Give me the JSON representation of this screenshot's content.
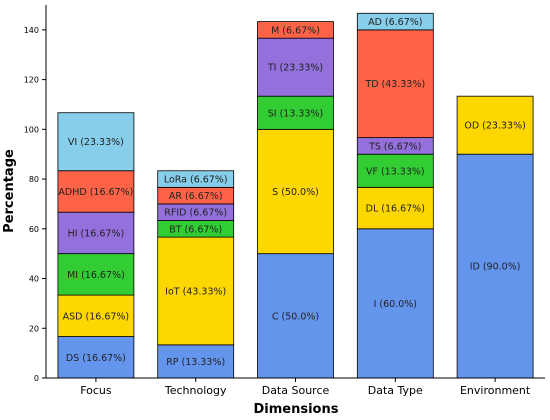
{
  "colors": {
    "blue": "#6495ED",
    "gold": "#FFD700",
    "green": "#32CD32",
    "purple": "#9370DB",
    "red": "#FF6347",
    "sky": "#87CEEB"
  },
  "chart_data": {
    "type": "bar",
    "stacked": true,
    "xlabel": "Dimensions",
    "ylabel": "Percentage",
    "ylim": [
      0,
      150
    ],
    "yticks": [
      0,
      20,
      40,
      60,
      80,
      100,
      120,
      140
    ],
    "grid": false,
    "categories": [
      "Focus",
      "Technology",
      "Data Source",
      "Data Type",
      "Environment"
    ],
    "stacks": [
      {
        "category": "Focus",
        "segments": [
          {
            "label": "DS (16.67%)",
            "value": 16.67,
            "color": "blue"
          },
          {
            "label": "ASD (16.67%)",
            "value": 16.67,
            "color": "gold"
          },
          {
            "label": "MI (16.67%)",
            "value": 16.67,
            "color": "green"
          },
          {
            "label": "HI (16.67%)",
            "value": 16.67,
            "color": "purple"
          },
          {
            "label": "ADHD (16.67%)",
            "value": 16.67,
            "color": "red"
          },
          {
            "label": "VI (23.33%)",
            "value": 23.33,
            "color": "sky"
          }
        ]
      },
      {
        "category": "Technology",
        "segments": [
          {
            "label": "RP (13.33%)",
            "value": 13.33,
            "color": "blue"
          },
          {
            "label": "IoT (43.33%)",
            "value": 43.33,
            "color": "gold"
          },
          {
            "label": "BT (6.67%)",
            "value": 6.67,
            "color": "green"
          },
          {
            "label": "RFID (6.67%)",
            "value": 6.67,
            "color": "purple"
          },
          {
            "label": "AR (6.67%)",
            "value": 6.67,
            "color": "red"
          },
          {
            "label": "LoRa (6.67%)",
            "value": 6.67,
            "color": "sky"
          }
        ]
      },
      {
        "category": "Data Source",
        "segments": [
          {
            "label": "C (50.0%)",
            "value": 50.0,
            "color": "blue"
          },
          {
            "label": "S (50.0%)",
            "value": 50.0,
            "color": "gold"
          },
          {
            "label": "SI (13.33%)",
            "value": 13.33,
            "color": "green"
          },
          {
            "label": "TI (23.33%)",
            "value": 23.33,
            "color": "purple"
          },
          {
            "label": "M (6.67%)",
            "value": 6.67,
            "color": "red"
          }
        ]
      },
      {
        "category": "Data Type",
        "segments": [
          {
            "label": "I (60.0%)",
            "value": 60.0,
            "color": "blue"
          },
          {
            "label": "DL (16.67%)",
            "value": 16.67,
            "color": "gold"
          },
          {
            "label": "VF (13.33%)",
            "value": 13.33,
            "color": "green"
          },
          {
            "label": "TS (6.67%)",
            "value": 6.67,
            "color": "purple"
          },
          {
            "label": "TD (43.33%)",
            "value": 43.33,
            "color": "red"
          },
          {
            "label": "AD (6.67%)",
            "value": 6.67,
            "color": "sky"
          }
        ]
      },
      {
        "category": "Environment",
        "segments": [
          {
            "label": "ID (90.0%)",
            "value": 90.0,
            "color": "blue"
          },
          {
            "label": "OD (23.33%)",
            "value": 23.33,
            "color": "gold"
          }
        ]
      }
    ]
  }
}
